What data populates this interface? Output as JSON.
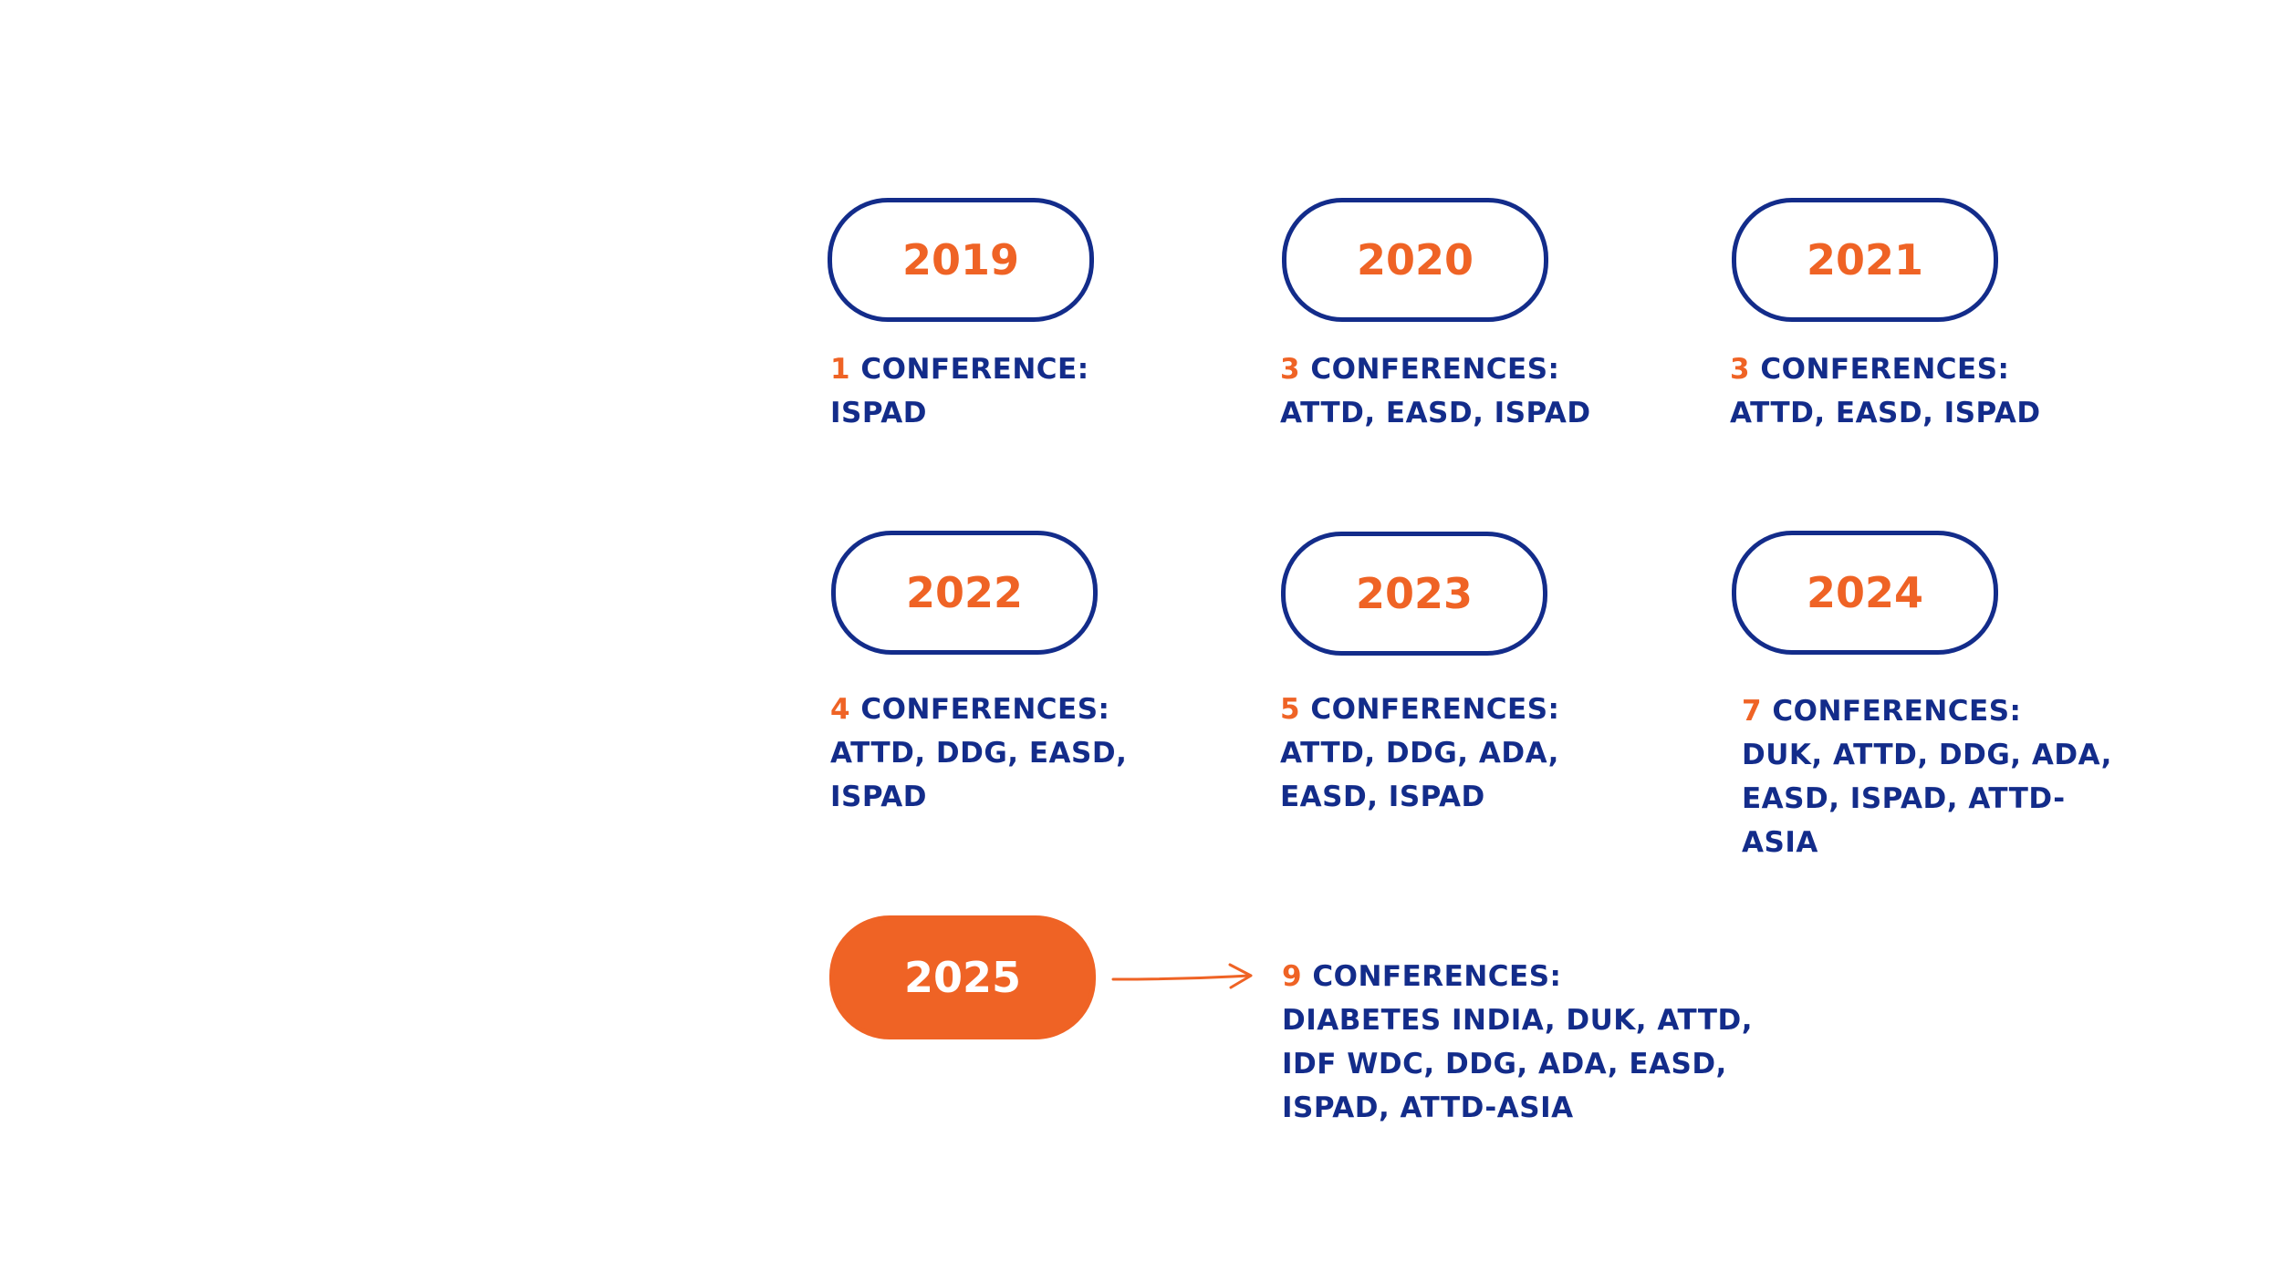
{
  "items": [
    {
      "year": "2019",
      "count": 1,
      "label": "CONFERENCE:",
      "lines": [
        "ISPAD"
      ]
    },
    {
      "year": "2020",
      "count": 3,
      "label": "CONFERENCES:",
      "lines": [
        "ATTD, EASD, ISPAD"
      ]
    },
    {
      "year": "2021",
      "count": 3,
      "label": "CONFERENCES:",
      "lines": [
        "ATTD, EASD, ISPAD"
      ]
    },
    {
      "year": "2022",
      "count": 4,
      "label": "CONFERENCES:",
      "lines": [
        "ATTD, DDG, EASD,",
        "ISPAD"
      ]
    },
    {
      "year": "2023",
      "count": 5,
      "label": "CONFERENCES:",
      "lines": [
        "ATTD, DDG, ADA,",
        "EASD, ISPAD"
      ]
    },
    {
      "year": "2024",
      "count": 7,
      "label": "CONFERENCES:",
      "lines": [
        "DUK, ATTD, DDG, ADA,",
        "EASD, ISPAD, ATTD-",
        "ASIA"
      ]
    },
    {
      "year": "2025",
      "count": 9,
      "label": "CONFERENCES:",
      "lines": [
        "DIABETES INDIA, DUK, ATTD,",
        "IDF WDC, DDG, ADA, EASD,",
        "ISPAD, ATTD-ASIA"
      ]
    }
  ]
}
